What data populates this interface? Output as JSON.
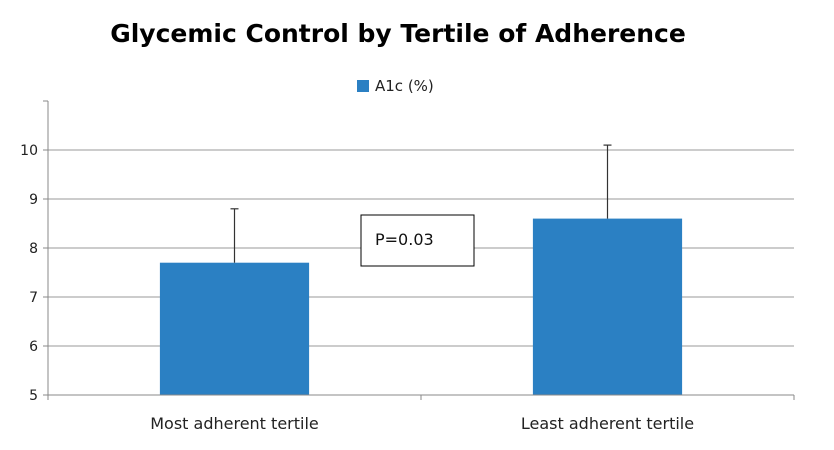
{
  "chart_data": {
    "type": "bar",
    "title": "Glycemic Control by Tertile of Adherence",
    "categories": [
      "Most adherent tertile",
      "Least adherent tertile"
    ],
    "series": [
      {
        "name": "A1c (%)",
        "values": [
          7.7,
          8.6
        ],
        "error_upper": [
          8.8,
          10.1
        ],
        "color": "#2b80c3"
      }
    ],
    "xlabel": "",
    "ylabel": "",
    "ylim": [
      5,
      11
    ],
    "yticks": [
      5,
      6,
      7,
      8,
      9,
      10
    ],
    "grid": true,
    "legend": "top-center",
    "annotation": "P=0.03"
  }
}
